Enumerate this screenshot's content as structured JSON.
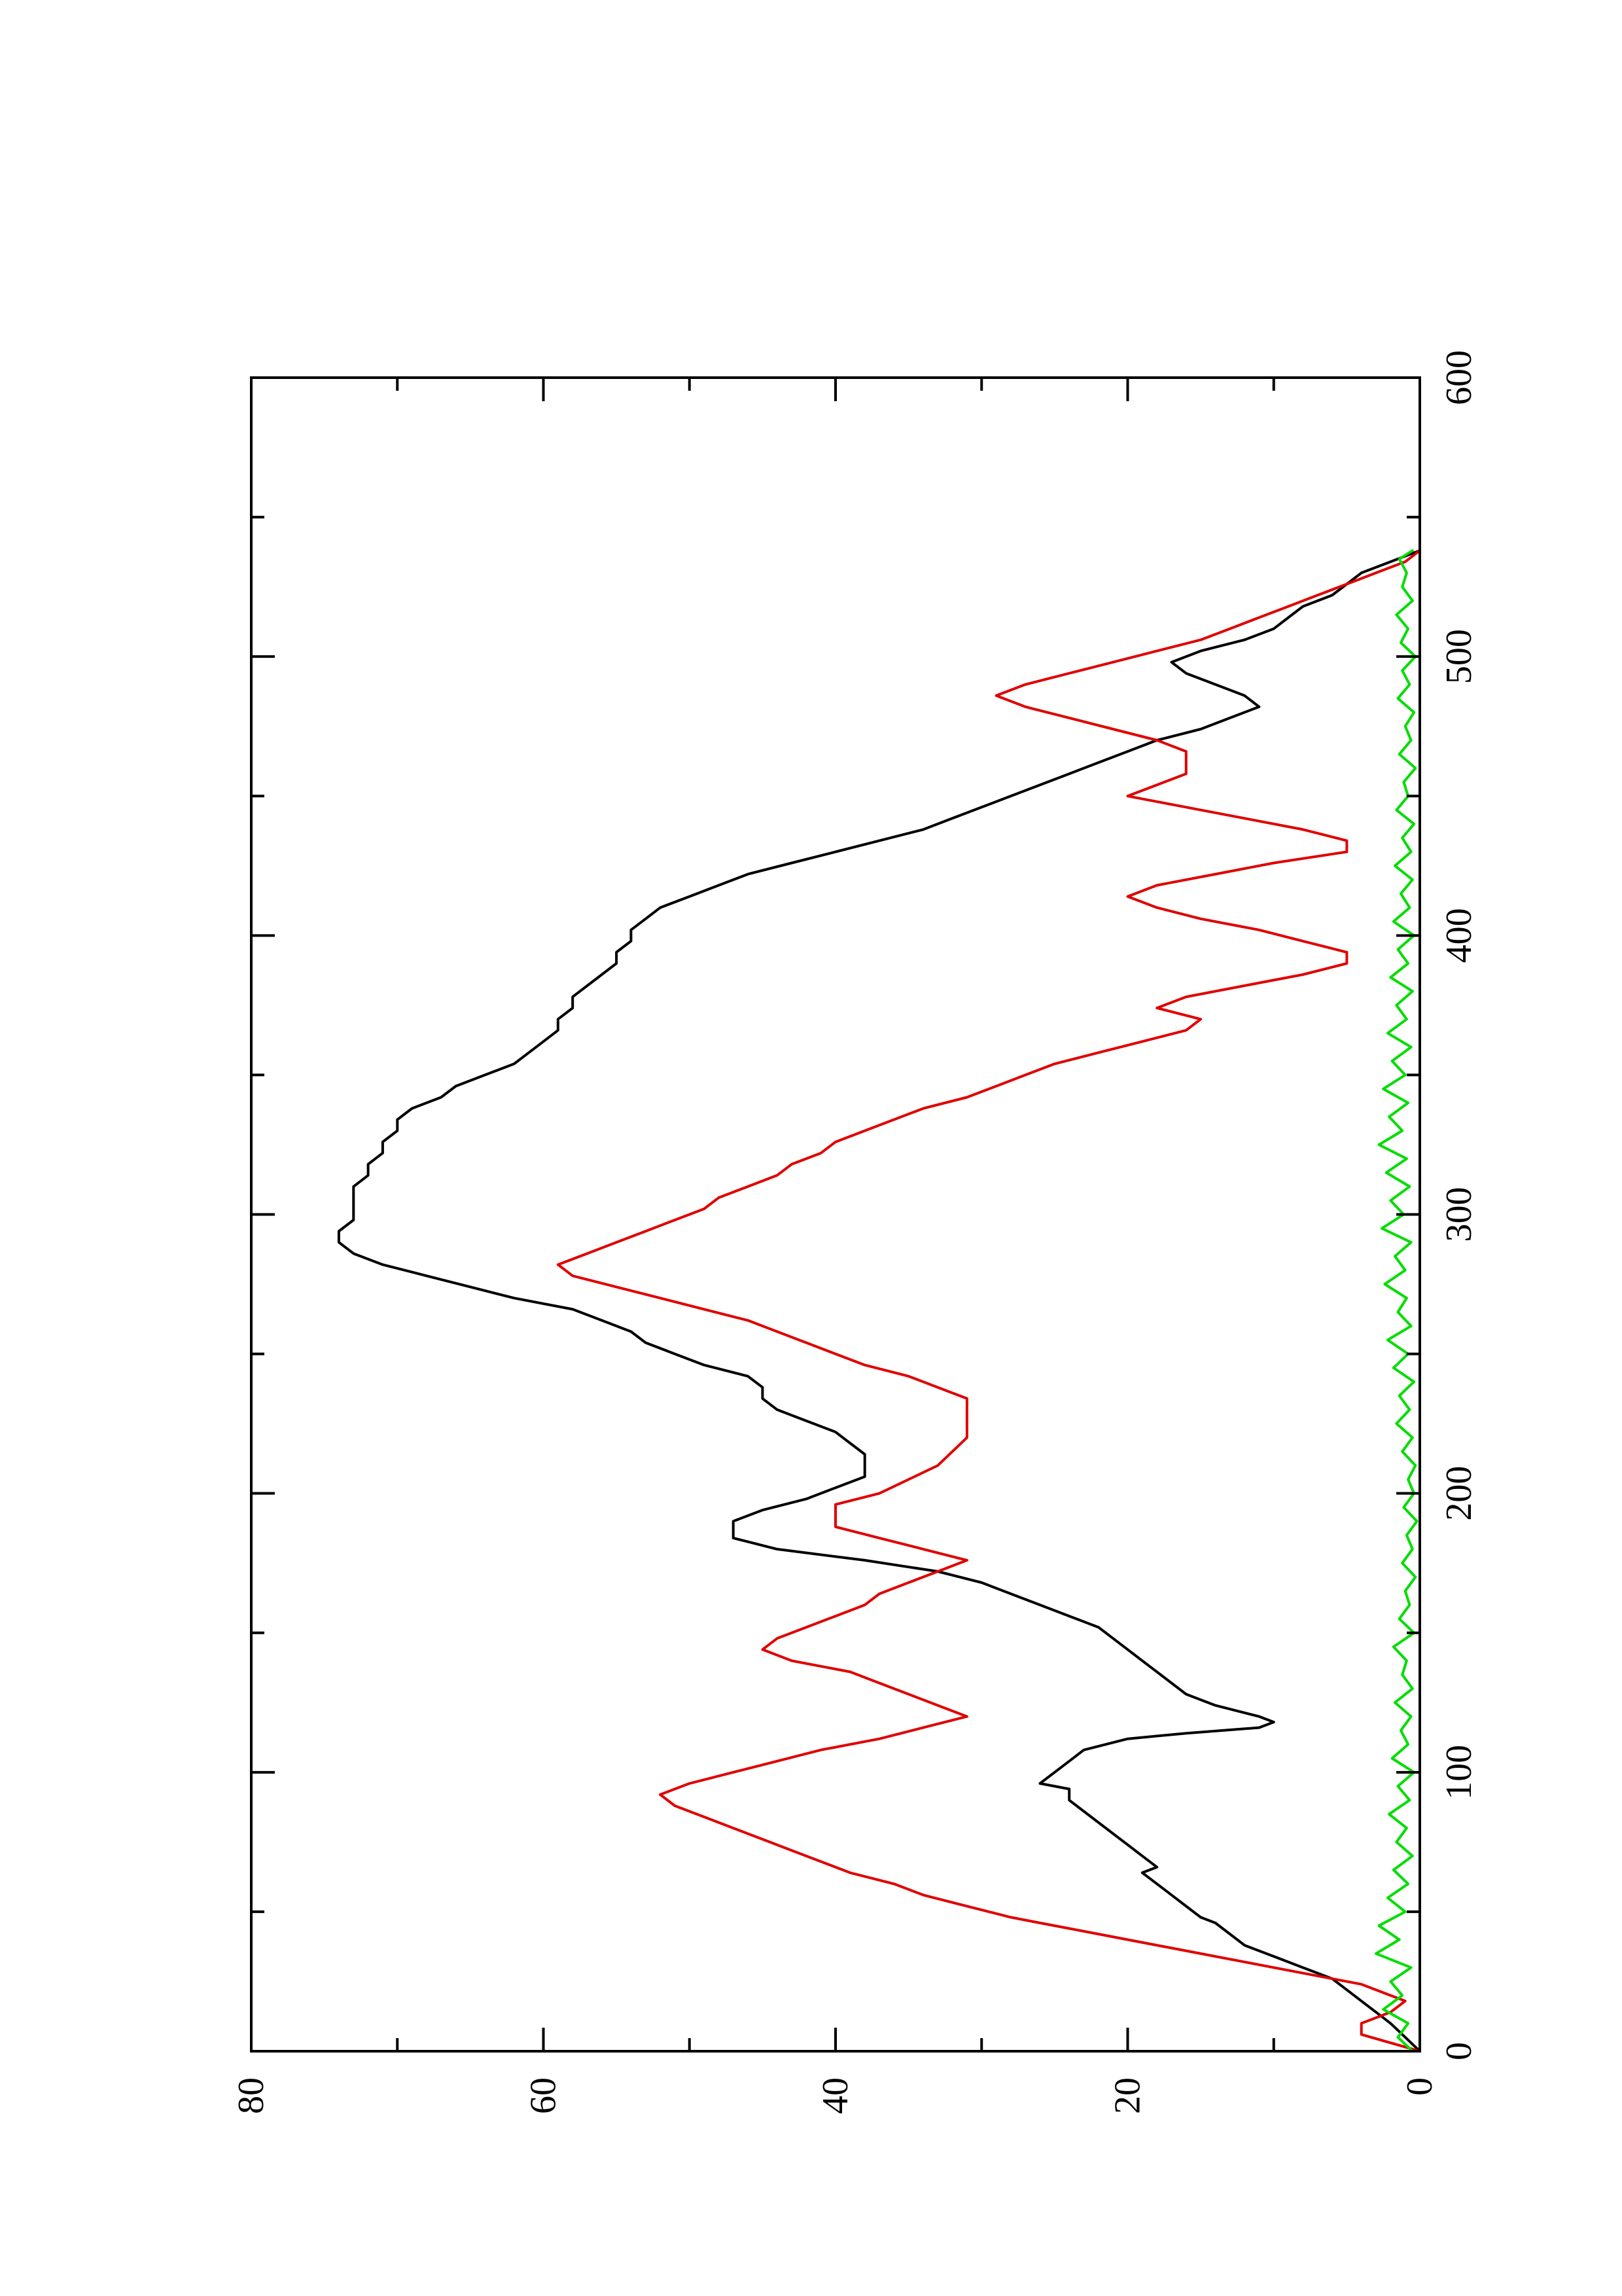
{
  "chart_data": {
    "type": "line",
    "orientation": "rotated-90-ccw",
    "title": "",
    "xlabel": "",
    "ylabel": "",
    "xlim": [
      0,
      600
    ],
    "ylim": [
      0,
      80
    ],
    "x_ticks": [
      {
        "value": 0,
        "label": "0"
      },
      {
        "value": 100,
        "label": "100"
      },
      {
        "value": 200,
        "label": "200"
      },
      {
        "value": 300,
        "label": "300"
      },
      {
        "value": 400,
        "label": "400"
      },
      {
        "value": 500,
        "label": "500"
      },
      {
        "value": 600,
        "label": "600"
      }
    ],
    "x_minor_ticks": [
      50,
      150,
      250,
      350,
      450,
      550
    ],
    "y_ticks": [
      {
        "value": 0,
        "label": "0"
      },
      {
        "value": 20,
        "label": "20"
      },
      {
        "value": 40,
        "label": "40"
      },
      {
        "value": 60,
        "label": "60"
      },
      {
        "value": 80,
        "label": "80"
      }
    ],
    "y_minor_ticks": [
      10,
      30,
      50,
      70
    ],
    "grid": false,
    "legend": "none",
    "series": [
      {
        "color": "#000000",
        "x": [
          0,
          5,
          10,
          14,
          18,
          22,
          26,
          30,
          34,
          38,
          42,
          46,
          48,
          52,
          56,
          60,
          64,
          66,
          70,
          74,
          78,
          82,
          86,
          90,
          94,
          96,
          100,
          104,
          108,
          112,
          114,
          116,
          118,
          120,
          124,
          128,
          132,
          136,
          140,
          144,
          148,
          152,
          156,
          160,
          164,
          168,
          172,
          176,
          180,
          184,
          188,
          190,
          194,
          198,
          202,
          206,
          210,
          214,
          218,
          222,
          226,
          230,
          234,
          238,
          242,
          246,
          250,
          254,
          258,
          262,
          266,
          270,
          274,
          278,
          282,
          286,
          290,
          294,
          298,
          302,
          306,
          310,
          314,
          318,
          322,
          326,
          330,
          334,
          338,
          342,
          346,
          350,
          354,
          358,
          362,
          366,
          370,
          374,
          378,
          382,
          386,
          390,
          394,
          398,
          402,
          406,
          410,
          414,
          418,
          422,
          426,
          430,
          434,
          438,
          442,
          446,
          450,
          454,
          458,
          462,
          466,
          470,
          474,
          478,
          482,
          486,
          490,
          494,
          498,
          502,
          506,
          510,
          514,
          518,
          522,
          526,
          530,
          534,
          538
        ],
        "values": [
          0,
          1,
          2,
          3,
          4,
          5,
          6,
          8,
          10,
          12,
          13,
          14,
          15,
          16,
          17,
          18,
          19,
          18,
          19,
          20,
          21,
          22,
          23,
          24,
          24,
          26,
          25,
          24,
          23,
          20,
          16,
          11,
          10,
          11,
          14,
          16,
          17,
          18,
          19,
          20,
          21,
          22,
          24,
          26,
          28,
          30,
          33,
          38,
          44,
          47,
          47,
          47,
          45,
          42,
          40,
          38,
          38,
          38,
          39,
          40,
          42,
          44,
          45,
          45,
          46,
          49,
          51,
          53,
          54,
          56,
          58,
          62,
          65,
          68,
          71,
          73,
          74,
          74,
          73,
          73,
          73,
          73,
          72,
          72,
          71,
          71,
          70,
          70,
          69,
          67,
          66,
          64,
          62,
          61,
          60,
          59,
          59,
          58,
          58,
          57,
          56,
          55,
          55,
          54,
          54,
          53,
          52,
          50,
          48,
          46,
          43,
          40,
          37,
          34,
          32,
          30,
          28,
          26,
          24,
          22,
          20,
          18,
          15,
          13,
          11,
          12,
          14,
          16,
          17,
          15,
          12,
          10,
          9,
          8,
          6,
          5,
          4,
          2,
          0
        ]
      },
      {
        "color": "#e00000",
        "x": [
          0,
          6,
          10,
          12,
          14,
          18,
          20,
          24,
          26,
          30,
          34,
          38,
          42,
          44,
          46,
          48,
          52,
          56,
          60,
          64,
          68,
          72,
          76,
          80,
          84,
          88,
          92,
          96,
          100,
          104,
          108,
          112,
          116,
          120,
          124,
          128,
          132,
          136,
          140,
          144,
          148,
          152,
          156,
          160,
          164,
          168,
          172,
          176,
          180,
          184,
          188,
          192,
          196,
          200,
          210,
          220,
          230,
          234,
          238,
          242,
          246,
          250,
          254,
          258,
          262,
          266,
          270,
          274,
          278,
          282,
          286,
          290,
          294,
          298,
          302,
          306,
          310,
          314,
          318,
          322,
          326,
          330,
          334,
          338,
          342,
          346,
          350,
          354,
          358,
          362,
          366,
          370,
          374,
          378,
          382,
          386,
          390,
          394,
          398,
          402,
          406,
          410,
          414,
          418,
          422,
          426,
          430,
          434,
          438,
          442,
          446,
          450,
          454,
          458,
          462,
          466,
          470,
          474,
          478,
          482,
          486,
          490,
          494,
          498,
          502,
          506,
          510,
          514,
          518,
          522,
          526,
          530,
          534,
          538
        ],
        "values": [
          0,
          4,
          4,
          3,
          2,
          1,
          2,
          4,
          6,
          10,
          14,
          18,
          22,
          24,
          26,
          28,
          31,
          34,
          36,
          39,
          41,
          43,
          45,
          47,
          49,
          51,
          52,
          50,
          47,
          44,
          41,
          37,
          34,
          31,
          33,
          35,
          37,
          39,
          43,
          45,
          44,
          42,
          40,
          38,
          37,
          35,
          33,
          31,
          34,
          37,
          40,
          40,
          40,
          37,
          33,
          31,
          31,
          31,
          33,
          35,
          38,
          40,
          42,
          44,
          46,
          49,
          52,
          55,
          58,
          59,
          57,
          55,
          53,
          51,
          49,
          48,
          46,
          44,
          43,
          41,
          40,
          38,
          36,
          34,
          31,
          29,
          27,
          25,
          22,
          19,
          16,
          15,
          18,
          16,
          12,
          8,
          5,
          5,
          8,
          11,
          15,
          18,
          20,
          18,
          14,
          10,
          5,
          5,
          8,
          12,
          16,
          20,
          18,
          16,
          16,
          16,
          18,
          21,
          24,
          27,
          29,
          27,
          24,
          21,
          18,
          15,
          13,
          11,
          9,
          7,
          5,
          3,
          1,
          0
        ]
      },
      {
        "color": "#00dd00",
        "x": [
          0,
          5,
          10,
          15,
          20,
          25,
          30,
          35,
          40,
          45,
          50,
          55,
          60,
          65,
          70,
          75,
          80,
          85,
          90,
          95,
          100,
          105,
          110,
          115,
          120,
          125,
          130,
          135,
          140,
          145,
          150,
          155,
          160,
          165,
          170,
          175,
          180,
          185,
          190,
          195,
          200,
          205,
          210,
          215,
          220,
          225,
          230,
          235,
          240,
          245,
          250,
          255,
          260,
          265,
          270,
          275,
          280,
          285,
          290,
          295,
          300,
          305,
          310,
          315,
          320,
          325,
          330,
          335,
          340,
          345,
          350,
          355,
          360,
          365,
          370,
          375,
          380,
          385,
          390,
          395,
          400,
          405,
          410,
          415,
          420,
          425,
          430,
          435,
          440,
          445,
          450,
          455,
          460,
          465,
          470,
          475,
          480,
          485,
          490,
          495,
          500,
          505,
          510,
          515,
          520,
          525,
          530,
          535,
          538
        ],
        "values": [
          0.5,
          1.5,
          0.8,
          2.5,
          1.2,
          2.0,
          0.6,
          3.0,
          1.4,
          2.8,
          1.0,
          2.2,
          0.8,
          1.8,
          0.5,
          1.6,
          0.9,
          2.1,
          0.7,
          1.5,
          0.4,
          1.9,
          0.8,
          1.3,
          0.6,
          1.7,
          0.5,
          1.2,
          0.9,
          1.8,
          0.4,
          1.4,
          0.7,
          1.0,
          0.3,
          1.2,
          0.5,
          0.9,
          0.2,
          1.1,
          0.4,
          0.8,
          0.3,
          1.2,
          0.5,
          1.6,
          0.7,
          1.4,
          0.4,
          1.8,
          0.8,
          2.2,
          0.6,
          1.5,
          0.9,
          2.4,
          1.0,
          1.7,
          0.6,
          2.6,
          1.1,
          2.0,
          0.7,
          2.3,
          0.9,
          2.8,
          1.2,
          2.1,
          0.8,
          2.5,
          1.0,
          1.9,
          0.6,
          2.2,
          0.9,
          1.6,
          0.5,
          2.0,
          0.8,
          1.5,
          0.4,
          1.8,
          0.7,
          1.3,
          0.5,
          1.7,
          0.6,
          1.2,
          0.4,
          1.6,
          0.8,
          1.1,
          0.3,
          1.4,
          0.6,
          1.0,
          0.4,
          1.5,
          0.7,
          1.2,
          0.3,
          1.3,
          0.8,
          1.6,
          0.5,
          1.2,
          0.9,
          1.4,
          0.5
        ]
      }
    ]
  }
}
